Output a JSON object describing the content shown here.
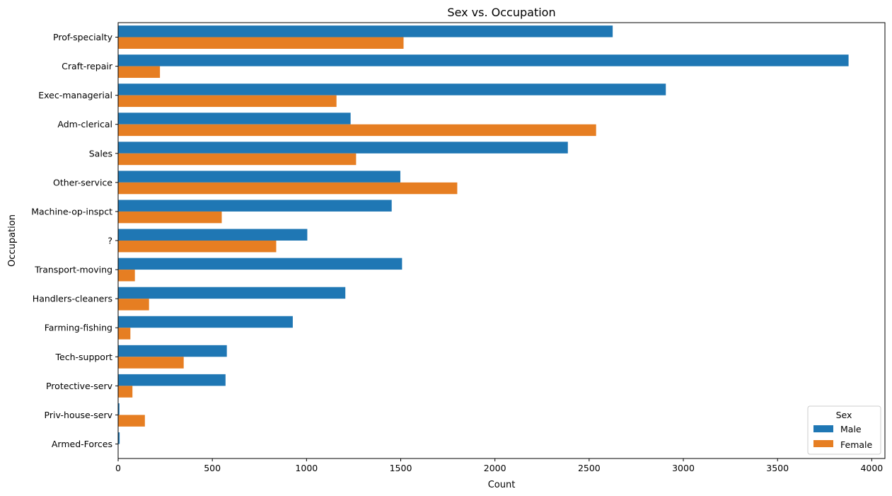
{
  "chart_data": {
    "type": "bar",
    "orientation": "horizontal",
    "title": "Sex vs. Occupation",
    "xlabel": "Count",
    "ylabel": "Occupation",
    "xlim": [
      0,
      4070
    ],
    "xticks": [
      0,
      500,
      1000,
      1500,
      2000,
      2500,
      3000,
      3500,
      4000
    ],
    "grid": false,
    "legend": {
      "title": "Sex",
      "position": "bottom-right"
    },
    "categories": [
      "Prof-specialty",
      "Craft-repair",
      "Exec-managerial",
      "Adm-clerical",
      "Sales",
      "Other-service",
      "Machine-op-inspct",
      "?",
      "Transport-moving",
      "Handlers-cleaners",
      "Farming-fishing",
      "Tech-support",
      "Protective-serv",
      "Priv-house-serv",
      "Armed-Forces"
    ],
    "series": [
      {
        "name": "Male",
        "color": "#1f77b4",
        "values": [
          2625,
          3877,
          2907,
          1234,
          2387,
          1498,
          1452,
          1004,
          1507,
          1206,
          927,
          577,
          570,
          7,
          8
        ]
      },
      {
        "name": "Female",
        "color": "#e67e22",
        "values": [
          1515,
          222,
          1159,
          2537,
          1263,
          1800,
          550,
          839,
          89,
          164,
          65,
          348,
          76,
          142,
          0
        ]
      }
    ]
  }
}
